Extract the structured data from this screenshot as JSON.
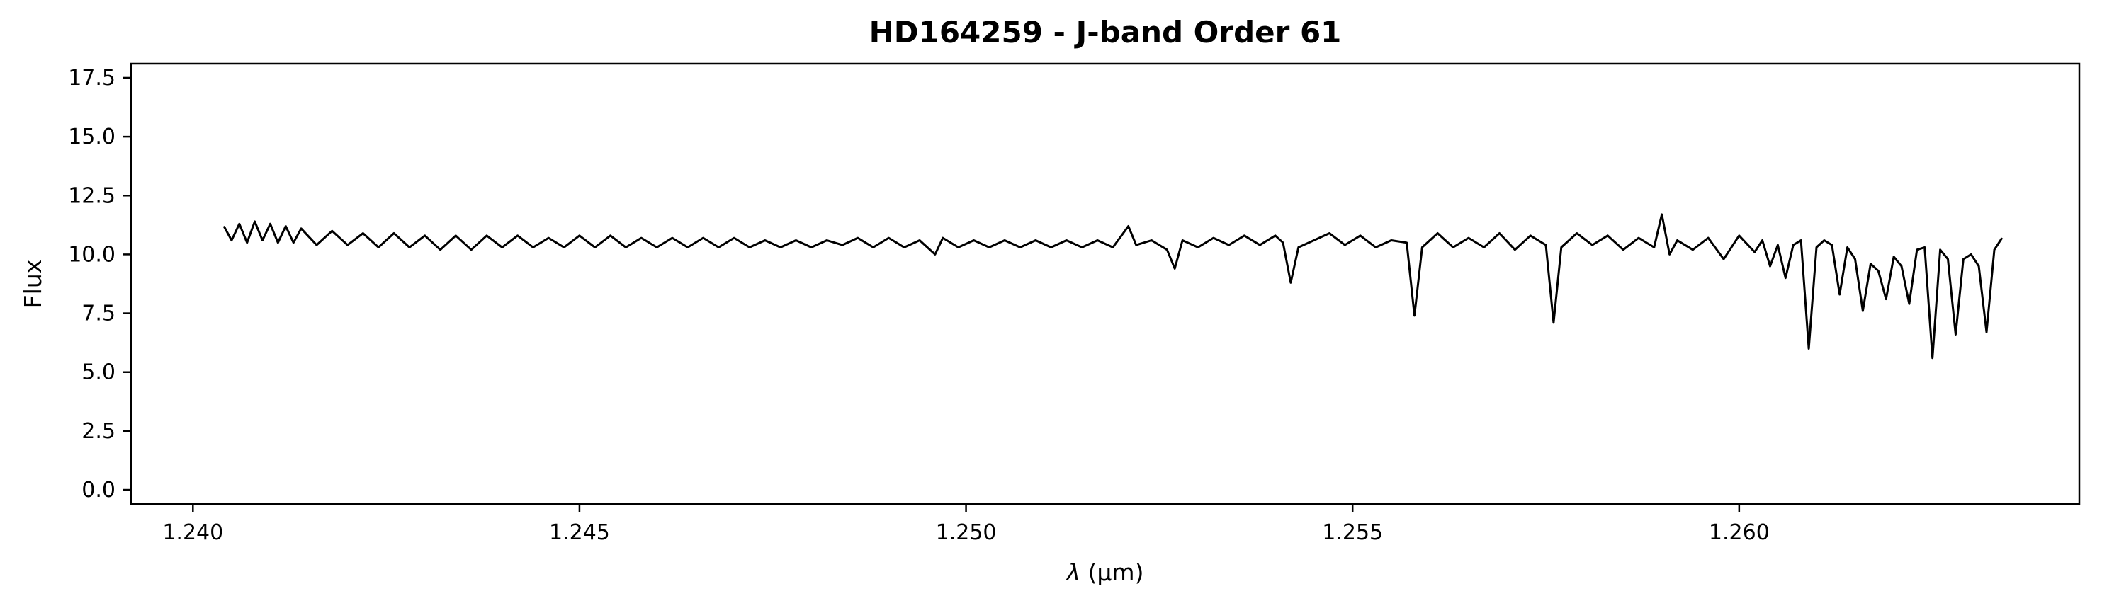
{
  "chart_data": {
    "type": "line",
    "title": "HD164259 - J-band Order 61",
    "xlabel_symbol": "λ",
    "xlabel_unit": "(μm)",
    "ylabel": "Flux",
    "xlim": [
      1.2392,
      1.2644
    ],
    "ylim": [
      -0.6,
      18.1
    ],
    "x_ticks": [
      1.24,
      1.245,
      1.25,
      1.255,
      1.26
    ],
    "x_tick_labels": [
      "1.240",
      "1.245",
      "1.250",
      "1.255",
      "1.260"
    ],
    "y_ticks": [
      0.0,
      2.5,
      5.0,
      7.5,
      10.0,
      12.5,
      15.0,
      17.5
    ],
    "y_tick_labels": [
      "0.0",
      "2.5",
      "5.0",
      "7.5",
      "10.0",
      "12.5",
      "15.0",
      "17.5"
    ],
    "grid": false,
    "line_color": "#000000",
    "series": [
      {
        "x_start": 1.2404,
        "x_end": 1.2634,
        "points": [
          [
            1.2404,
            11.2
          ],
          [
            1.2405,
            10.6
          ],
          [
            1.2406,
            11.3
          ],
          [
            1.2407,
            10.5
          ],
          [
            1.2408,
            11.4
          ],
          [
            1.2409,
            10.6
          ],
          [
            1.241,
            11.3
          ],
          [
            1.2411,
            10.5
          ],
          [
            1.2412,
            11.2
          ],
          [
            1.2413,
            10.5
          ],
          [
            1.2414,
            11.1
          ],
          [
            1.2416,
            10.4
          ],
          [
            1.2418,
            11.0
          ],
          [
            1.242,
            10.4
          ],
          [
            1.2422,
            10.9
          ],
          [
            1.2424,
            10.3
          ],
          [
            1.2426,
            10.9
          ],
          [
            1.2428,
            10.3
          ],
          [
            1.243,
            10.8
          ],
          [
            1.2432,
            10.2
          ],
          [
            1.2434,
            10.8
          ],
          [
            1.2436,
            10.2
          ],
          [
            1.2438,
            10.8
          ],
          [
            1.244,
            10.3
          ],
          [
            1.2442,
            10.8
          ],
          [
            1.2444,
            10.3
          ],
          [
            1.2446,
            10.7
          ],
          [
            1.2448,
            10.3
          ],
          [
            1.245,
            10.8
          ],
          [
            1.2452,
            10.3
          ],
          [
            1.2454,
            10.8
          ],
          [
            1.2456,
            10.3
          ],
          [
            1.2458,
            10.7
          ],
          [
            1.246,
            10.3
          ],
          [
            1.2462,
            10.7
          ],
          [
            1.2464,
            10.3
          ],
          [
            1.2466,
            10.7
          ],
          [
            1.2468,
            10.3
          ],
          [
            1.247,
            10.7
          ],
          [
            1.2472,
            10.3
          ],
          [
            1.2474,
            10.6
          ],
          [
            1.2476,
            10.3
          ],
          [
            1.2478,
            10.6
          ],
          [
            1.248,
            10.3
          ],
          [
            1.2482,
            10.6
          ],
          [
            1.2484,
            10.4
          ],
          [
            1.2486,
            10.7
          ],
          [
            1.2488,
            10.3
          ],
          [
            1.249,
            10.7
          ],
          [
            1.2492,
            10.3
          ],
          [
            1.2494,
            10.6
          ],
          [
            1.2496,
            10.0
          ],
          [
            1.2497,
            10.7
          ],
          [
            1.2499,
            10.3
          ],
          [
            1.2501,
            10.6
          ],
          [
            1.2503,
            10.3
          ],
          [
            1.2505,
            10.6
          ],
          [
            1.2507,
            10.3
          ],
          [
            1.2509,
            10.6
          ],
          [
            1.2511,
            10.3
          ],
          [
            1.2513,
            10.6
          ],
          [
            1.2515,
            10.3
          ],
          [
            1.2517,
            10.6
          ],
          [
            1.2519,
            10.3
          ],
          [
            1.2521,
            11.2
          ],
          [
            1.2522,
            10.4
          ],
          [
            1.2524,
            10.6
          ],
          [
            1.2526,
            10.2
          ],
          [
            1.2527,
            9.4
          ],
          [
            1.2528,
            10.6
          ],
          [
            1.253,
            10.3
          ],
          [
            1.2532,
            10.7
          ],
          [
            1.2534,
            10.4
          ],
          [
            1.2536,
            10.8
          ],
          [
            1.2538,
            10.4
          ],
          [
            1.254,
            10.8
          ],
          [
            1.2541,
            10.5
          ],
          [
            1.2542,
            8.8
          ],
          [
            1.2543,
            10.3
          ],
          [
            1.2545,
            10.6
          ],
          [
            1.2547,
            10.9
          ],
          [
            1.2549,
            10.4
          ],
          [
            1.2551,
            10.8
          ],
          [
            1.2553,
            10.3
          ],
          [
            1.2555,
            10.6
          ],
          [
            1.2557,
            10.5
          ],
          [
            1.2558,
            7.4
          ],
          [
            1.2559,
            10.3
          ],
          [
            1.2561,
            10.9
          ],
          [
            1.2563,
            10.3
          ],
          [
            1.2565,
            10.7
          ],
          [
            1.2567,
            10.3
          ],
          [
            1.2569,
            10.9
          ],
          [
            1.2571,
            10.2
          ],
          [
            1.2573,
            10.8
          ],
          [
            1.2575,
            10.4
          ],
          [
            1.2576,
            7.1
          ],
          [
            1.2577,
            10.3
          ],
          [
            1.2579,
            10.9
          ],
          [
            1.2581,
            10.4
          ],
          [
            1.2583,
            10.8
          ],
          [
            1.2585,
            10.2
          ],
          [
            1.2587,
            10.7
          ],
          [
            1.2589,
            10.3
          ],
          [
            1.259,
            11.7
          ],
          [
            1.2591,
            10.0
          ],
          [
            1.2592,
            10.6
          ],
          [
            1.2594,
            10.2
          ],
          [
            1.2596,
            10.7
          ],
          [
            1.2598,
            9.8
          ],
          [
            1.26,
            10.8
          ],
          [
            1.2602,
            10.1
          ],
          [
            1.2603,
            10.6
          ],
          [
            1.2604,
            9.5
          ],
          [
            1.2605,
            10.4
          ],
          [
            1.2606,
            9.0
          ],
          [
            1.2607,
            10.4
          ],
          [
            1.2608,
            10.6
          ],
          [
            1.2609,
            6.0
          ],
          [
            1.261,
            10.3
          ],
          [
            1.2611,
            10.6
          ],
          [
            1.2612,
            10.4
          ],
          [
            1.2613,
            8.3
          ],
          [
            1.2614,
            10.3
          ],
          [
            1.2615,
            9.8
          ],
          [
            1.2616,
            7.6
          ],
          [
            1.2617,
            9.6
          ],
          [
            1.2618,
            9.3
          ],
          [
            1.2619,
            8.1
          ],
          [
            1.262,
            9.9
          ],
          [
            1.2621,
            9.5
          ],
          [
            1.2622,
            7.9
          ],
          [
            1.2623,
            10.2
          ],
          [
            1.2624,
            10.3
          ],
          [
            1.2625,
            5.6
          ],
          [
            1.2626,
            10.2
          ],
          [
            1.2627,
            9.8
          ],
          [
            1.2628,
            6.6
          ],
          [
            1.2629,
            9.8
          ],
          [
            1.263,
            10.0
          ],
          [
            1.2631,
            9.5
          ],
          [
            1.2632,
            6.7
          ],
          [
            1.2633,
            10.2
          ],
          [
            1.2634,
            10.7
          ]
        ]
      }
    ]
  }
}
